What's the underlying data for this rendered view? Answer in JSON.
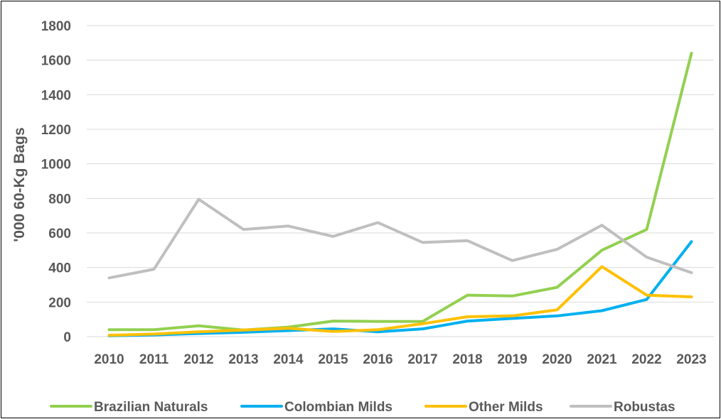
{
  "chart_data": {
    "type": "line",
    "ylabel": "'000 60-Kg Bags",
    "xlabel": "",
    "title": "",
    "x": [
      "2010",
      "2011",
      "2012",
      "2013",
      "2014",
      "2015",
      "2016",
      "2017",
      "2018",
      "2019",
      "2020",
      "2021",
      "2022",
      "2023"
    ],
    "yticks": [
      "0",
      "200",
      "400",
      "600",
      "800",
      "1000",
      "1200",
      "1400",
      "1600",
      "1800"
    ],
    "ylim": [
      0,
      1800
    ],
    "grid": "horizontal",
    "legend_position": "bottom",
    "series": [
      {
        "name": "Brazilian Naturals",
        "color": "#92d050",
        "values": [
          40,
          40,
          63,
          38,
          55,
          90,
          88,
          88,
          240,
          235,
          285,
          500,
          620,
          1640
        ]
      },
      {
        "name": "Colombian Milds",
        "color": "#00b0f0",
        "values": [
          5,
          10,
          18,
          25,
          35,
          45,
          28,
          45,
          90,
          105,
          120,
          150,
          215,
          550
        ]
      },
      {
        "name": "Other Milds",
        "color": "#ffc000",
        "values": [
          8,
          15,
          28,
          38,
          48,
          30,
          40,
          75,
          115,
          120,
          155,
          405,
          240,
          230
        ]
      },
      {
        "name": "Robustas",
        "color": "#bfbfbf",
        "values": [
          340,
          390,
          795,
          620,
          640,
          580,
          660,
          545,
          555,
          440,
          505,
          645,
          460,
          370
        ]
      }
    ]
  }
}
